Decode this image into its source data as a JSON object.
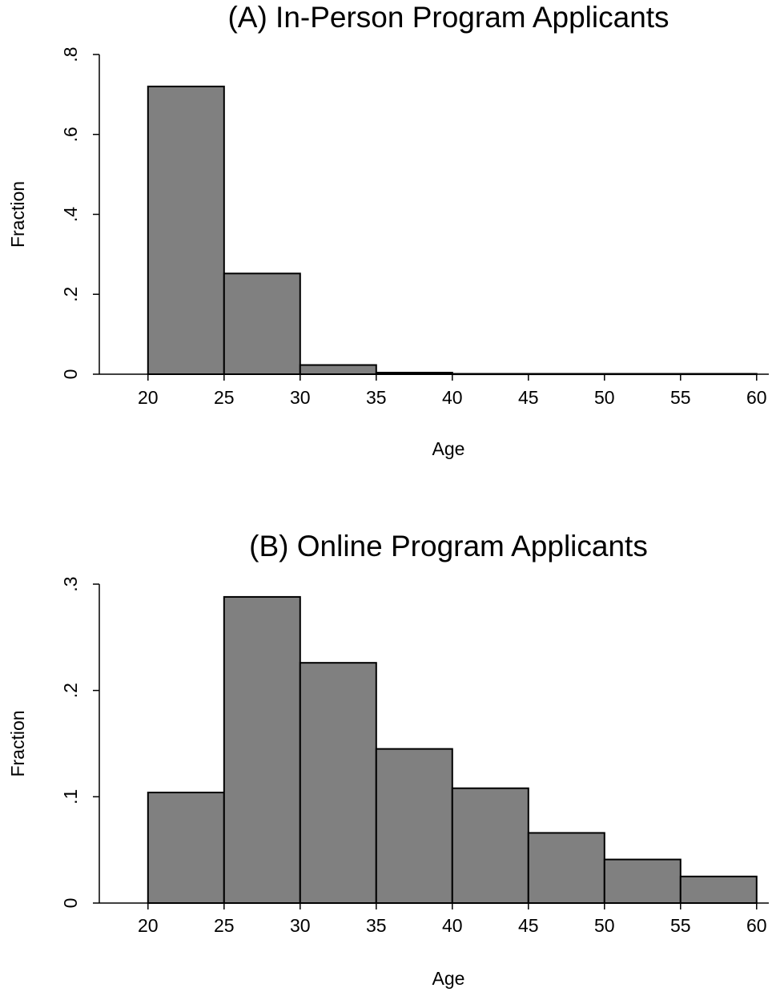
{
  "chart_data": [
    {
      "type": "bar",
      "title": "(A) In-Person Program Applicants",
      "xlabel": "Age",
      "ylabel": "Fraction",
      "bin_edges": [
        20,
        25,
        30,
        35,
        40,
        45,
        50,
        55,
        60
      ],
      "values": [
        0.72,
        0.252,
        0.023,
        0.004,
        0.001,
        0.001,
        0.001,
        0.001
      ],
      "xlim": [
        16.8,
        60.8
      ],
      "ylim": [
        0,
        0.8
      ],
      "x_ticks": [
        20,
        25,
        30,
        35,
        40,
        45,
        50,
        55,
        60
      ],
      "x_tick_labels": [
        "20",
        "25",
        "30",
        "35",
        "40",
        "45",
        "50",
        "55",
        "60"
      ],
      "y_ticks": [
        0,
        0.2,
        0.4,
        0.6,
        0.8
      ],
      "y_tick_labels": [
        "0",
        ".2",
        ".4",
        ".6",
        ".8"
      ],
      "bar_color": "#808080",
      "grid": false,
      "legend": "none"
    },
    {
      "type": "bar",
      "title": "(B) Online Program Applicants",
      "xlabel": "Age",
      "ylabel": "Fraction",
      "bin_edges": [
        20,
        25,
        30,
        35,
        40,
        45,
        50,
        55,
        60
      ],
      "values": [
        0.104,
        0.288,
        0.226,
        0.145,
        0.108,
        0.066,
        0.041,
        0.025
      ],
      "xlim": [
        16.8,
        60.8
      ],
      "ylim": [
        0,
        0.3
      ],
      "x_ticks": [
        20,
        25,
        30,
        35,
        40,
        45,
        50,
        55,
        60
      ],
      "x_tick_labels": [
        "20",
        "25",
        "30",
        "35",
        "40",
        "45",
        "50",
        "55",
        "60"
      ],
      "y_ticks": [
        0,
        0.1,
        0.2,
        0.3
      ],
      "y_tick_labels": [
        "0",
        ".1",
        ".2",
        ".3"
      ],
      "bar_color": "#808080",
      "grid": false,
      "legend": "none"
    }
  ]
}
